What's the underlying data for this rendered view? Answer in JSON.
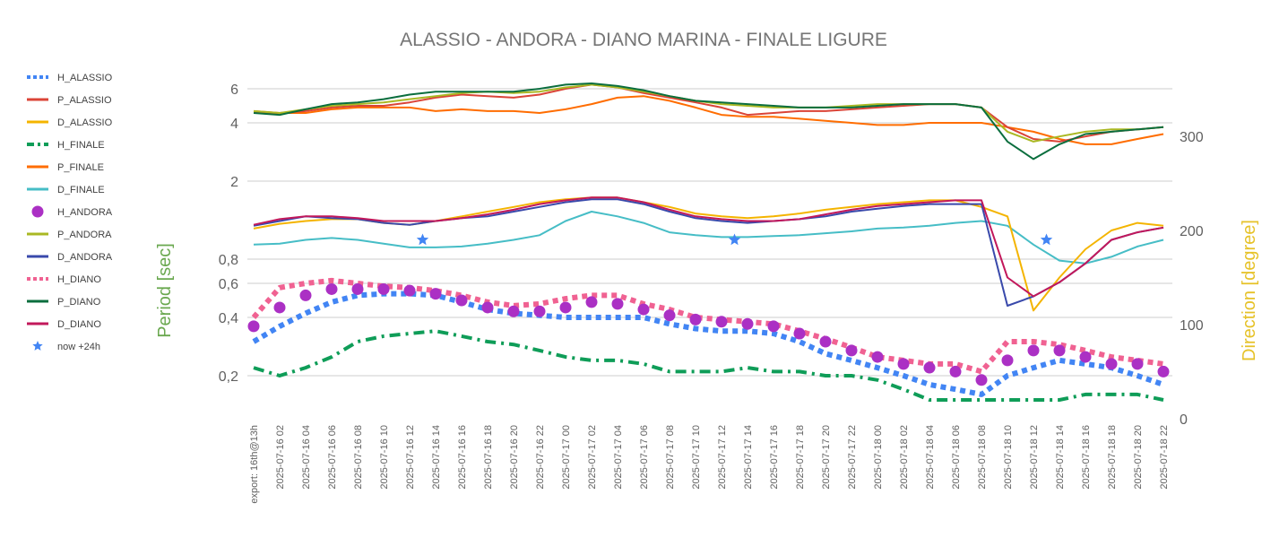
{
  "chart_data": {
    "type": "line",
    "title": "ALASSIO - ANDORA - DIANO MARINA - FINALE LIGURE",
    "y_left_label": "Period [sec]",
    "y_right_label": "Direction [degree]",
    "y_left_ticks": [
      {
        "value": 0.2,
        "label": "0,2"
      },
      {
        "value": 0.4,
        "label": "0,4"
      },
      {
        "value": 0.6,
        "label": "0,6"
      },
      {
        "value": 0.8,
        "label": "0,8"
      },
      {
        "value": 2,
        "label": "2"
      },
      {
        "value": 4,
        "label": "4"
      },
      {
        "value": 6,
        "label": "6"
      }
    ],
    "y_left_scale": "log",
    "y_right_ticks": [
      0,
      100,
      200,
      300
    ],
    "y_right_range": [
      0,
      350
    ],
    "x_categories": [
      "export: 16th@13h",
      "2025-07-16 02",
      "2025-07-16 04",
      "2025-07-16 06",
      "2025-07-16 08",
      "2025-07-16 10",
      "2025-07-16 12",
      "2025-07-16 14",
      "2025-07-16 16",
      "2025-07-16 18",
      "2025-07-16 20",
      "2025-07-16 22",
      "2025-07-17 00",
      "2025-07-17 02",
      "2025-07-17 04",
      "2025-07-17 06",
      "2025-07-17 08",
      "2025-07-17 10",
      "2025-07-17 12",
      "2025-07-17 14",
      "2025-07-17 16",
      "2025-07-17 18",
      "2025-07-17 20",
      "2025-07-17 22",
      "2025-07-18 00",
      "2025-07-18 02",
      "2025-07-18 04",
      "2025-07-18 06",
      "2025-07-18 08",
      "2025-07-18 10",
      "2025-07-18 12",
      "2025-07-18 14",
      "2025-07-18 16",
      "2025-07-18 18",
      "2025-07-18 20",
      "2025-07-18 22"
    ],
    "grid": true,
    "legend_position": "left",
    "series": [
      {
        "name": "H_ALASSIO",
        "axis": "left",
        "style": "dotted",
        "color": "#4285f4",
        "values": [
          0.3,
          0.36,
          0.42,
          0.48,
          0.52,
          0.53,
          0.53,
          0.52,
          0.48,
          0.44,
          0.42,
          0.41,
          0.4,
          0.4,
          0.4,
          0.4,
          0.37,
          0.35,
          0.34,
          0.34,
          0.33,
          0.3,
          0.26,
          0.24,
          0.22,
          0.2,
          0.18,
          0.17,
          0.16,
          0.2,
          0.22,
          0.24,
          0.23,
          0.22,
          0.2,
          0.18
        ]
      },
      {
        "name": "P_ALASSIO",
        "axis": "left",
        "style": "line",
        "color": "#db4437",
        "values": [
          4.5,
          4.5,
          4.6,
          4.8,
          4.9,
          4.9,
          5.1,
          5.4,
          5.6,
          5.5,
          5.4,
          5.6,
          6.0,
          6.3,
          6.1,
          5.7,
          5.4,
          5.1,
          4.8,
          4.4,
          4.5,
          4.6,
          4.6,
          4.7,
          4.8,
          4.9,
          5.0,
          5.0,
          4.8,
          3.8,
          3.3,
          3.2,
          3.4,
          3.6,
          3.7,
          3.8
        ]
      },
      {
        "name": "D_ALASSIO",
        "axis": "right",
        "style": "line",
        "color": "#f4b400",
        "values": [
          202,
          207,
          210,
          212,
          212,
          208,
          206,
          210,
          215,
          220,
          225,
          230,
          233,
          235,
          235,
          230,
          225,
          218,
          215,
          213,
          215,
          218,
          222,
          225,
          228,
          230,
          232,
          232,
          225,
          215,
          115,
          150,
          180,
          200,
          208,
          205
        ]
      },
      {
        "name": "H_FINALE",
        "axis": "left",
        "style": "dashdot",
        "color": "#0f9d58",
        "values": [
          0.22,
          0.2,
          0.22,
          0.25,
          0.3,
          0.32,
          0.33,
          0.34,
          0.32,
          0.3,
          0.29,
          0.27,
          0.25,
          0.24,
          0.24,
          0.23,
          0.21,
          0.21,
          0.21,
          0.22,
          0.21,
          0.21,
          0.2,
          0.2,
          0.19,
          0.17,
          0.15,
          0.15,
          0.15,
          0.15,
          0.15,
          0.15,
          0.16,
          0.16,
          0.16,
          0.15
        ]
      },
      {
        "name": "P_FINALE",
        "axis": "left",
        "style": "line",
        "color": "#ff6d01",
        "values": [
          4.6,
          4.5,
          4.5,
          4.7,
          4.8,
          4.8,
          4.8,
          4.6,
          4.7,
          4.6,
          4.6,
          4.5,
          4.7,
          5.0,
          5.4,
          5.5,
          5.2,
          4.8,
          4.4,
          4.3,
          4.3,
          4.2,
          4.1,
          4.0,
          3.9,
          3.9,
          4.0,
          4.0,
          4.0,
          3.8,
          3.6,
          3.3,
          3.1,
          3.1,
          3.3,
          3.5
        ]
      },
      {
        "name": "D_FINALE",
        "axis": "right",
        "style": "line",
        "color": "#46bdc6",
        "values": [
          185,
          186,
          190,
          192,
          190,
          186,
          182,
          182,
          183,
          186,
          190,
          195,
          210,
          220,
          215,
          208,
          198,
          195,
          193,
          193,
          194,
          195,
          197,
          199,
          202,
          203,
          205,
          208,
          210,
          205,
          185,
          168,
          165,
          172,
          183,
          190
        ]
      },
      {
        "name": "H_ANDORA",
        "axis": "left",
        "style": "dots",
        "color": "#ab30c4",
        "values": [
          0.36,
          0.45,
          0.52,
          0.56,
          0.56,
          0.56,
          0.55,
          0.53,
          0.49,
          0.45,
          0.43,
          0.43,
          0.45,
          0.48,
          0.47,
          0.44,
          0.41,
          0.39,
          0.38,
          0.37,
          0.36,
          0.33,
          0.3,
          0.27,
          0.25,
          0.23,
          0.22,
          0.21,
          0.19,
          0.24,
          0.27,
          0.27,
          0.25,
          0.23,
          0.23,
          0.21
        ]
      },
      {
        "name": "P_ANDORA",
        "axis": "left",
        "style": "line",
        "color": "#aab823",
        "values": [
          4.6,
          4.5,
          4.7,
          4.9,
          5.0,
          5.1,
          5.3,
          5.5,
          5.7,
          5.8,
          5.7,
          5.8,
          6.1,
          6.3,
          6.1,
          5.8,
          5.5,
          5.2,
          5.0,
          4.9,
          4.8,
          4.8,
          4.8,
          4.9,
          5.0,
          5.0,
          5.0,
          5.0,
          4.8,
          3.6,
          3.2,
          3.4,
          3.6,
          3.7,
          3.7,
          3.8
        ]
      },
      {
        "name": "D_ANDORA",
        "axis": "right",
        "style": "line",
        "color": "#3949ab",
        "values": [
          205,
          210,
          215,
          213,
          212,
          208,
          206,
          210,
          213,
          215,
          220,
          225,
          230,
          233,
          233,
          228,
          220,
          213,
          210,
          208,
          210,
          212,
          215,
          220,
          223,
          226,
          228,
          228,
          228,
          120,
          130,
          145,
          165,
          190,
          198,
          203
        ]
      },
      {
        "name": "H_DIANO",
        "axis": "left",
        "style": "dotted",
        "color": "#f06292",
        "values": [
          0.4,
          0.57,
          0.6,
          0.62,
          0.6,
          0.58,
          0.57,
          0.55,
          0.52,
          0.48,
          0.46,
          0.47,
          0.5,
          0.52,
          0.52,
          0.47,
          0.44,
          0.4,
          0.39,
          0.38,
          0.37,
          0.34,
          0.31,
          0.28,
          0.25,
          0.24,
          0.23,
          0.23,
          0.21,
          0.3,
          0.3,
          0.29,
          0.27,
          0.25,
          0.24,
          0.23
        ]
      },
      {
        "name": "P_DIANO",
        "axis": "left",
        "style": "line",
        "color": "#0b6e3e",
        "values": [
          4.5,
          4.4,
          4.7,
          5.0,
          5.1,
          5.3,
          5.6,
          5.8,
          5.8,
          5.8,
          5.8,
          6.0,
          6.3,
          6.4,
          6.2,
          5.9,
          5.5,
          5.2,
          5.1,
          5.0,
          4.9,
          4.8,
          4.8,
          4.8,
          4.9,
          5.0,
          5.0,
          5.0,
          4.8,
          3.2,
          2.6,
          3.1,
          3.5,
          3.6,
          3.7,
          3.8
        ]
      },
      {
        "name": "D_DIANO",
        "axis": "right",
        "style": "line",
        "color": "#c2185b",
        "values": [
          206,
          212,
          215,
          215,
          213,
          210,
          210,
          210,
          213,
          217,
          222,
          228,
          232,
          235,
          235,
          230,
          222,
          215,
          212,
          210,
          210,
          212,
          217,
          222,
          226,
          228,
          230,
          232,
          232,
          150,
          130,
          145,
          165,
          190,
          198,
          203
        ]
      },
      {
        "name": "now +24h",
        "axis": "right",
        "style": "star",
        "color": "#4285f4",
        "points": [
          {
            "x": "2025-07-16 12",
            "offset": 0.5,
            "y": 190
          },
          {
            "x": "2025-07-17 12",
            "offset": 0.5,
            "y": 190
          },
          {
            "x": "2025-07-18 12",
            "offset": 0.5,
            "y": 190
          }
        ]
      }
    ]
  }
}
